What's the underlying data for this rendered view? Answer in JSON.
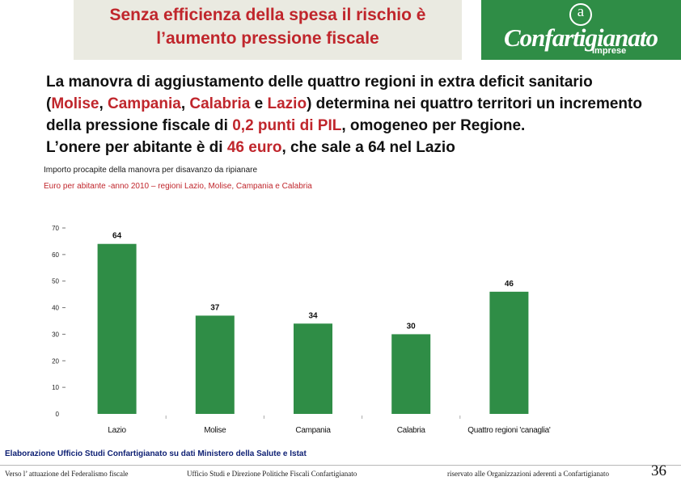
{
  "header": {
    "title_line1": "Senza efficienza della spesa il rischio è",
    "title_line2": "l’aumento pressione fiscale",
    "logo_name": "Confartigianato",
    "logo_sub": "Imprese",
    "logo_symbol": "a"
  },
  "body": {
    "p1_a": "La manovra di aggiustamento delle quattro regioni in extra deficit sanitario (",
    "p1_molise": "Molise",
    "p1_comma1": ", ",
    "p1_campania": "Campania",
    "p1_comma2": ", ",
    "p1_calabria": "Calabria",
    "p1_e": " e ",
    "p1_lazio": "Lazio",
    "p1_b": ") determina nei quattro territori un incremento della pressione fiscale di ",
    "p1_val": "0,2 punti di PIL",
    "p1_c": ", omogeneo per Regione.",
    "p2_a": "L’onere per abitante è di ",
    "p2_val": "46 euro",
    "p2_b": ", che sale a 64 nel Lazio"
  },
  "chart_data": {
    "type": "bar",
    "title": "Importo procapite della manovra per disavanzo da ripianare",
    "subtitle": "Euro per abitante -anno 2010 – regioni Lazio, Molise, Campania e Calabria",
    "categories": [
      "Lazio",
      "Molise",
      "Campania",
      "Calabria",
      "Quattro regioni 'canaglia'"
    ],
    "values": [
      64,
      37,
      34,
      30,
      46
    ],
    "value_labels": [
      "64",
      "37",
      "34",
      "30",
      "46"
    ],
    "yticks": [
      "0",
      "10",
      "20",
      "30",
      "40",
      "50",
      "60",
      "70"
    ],
    "ylim": [
      0,
      70
    ],
    "bar_color": "#2f8d46",
    "grid": false
  },
  "source": "Elaborazione Ufficio Studi Confartigianato su dati Ministero della Salute e Istat",
  "footer": {
    "left": "Verso l’ attuazione del Federalismo fiscale",
    "center": "Ufficio Studi e Direzione Politiche Fiscali Confartigianato",
    "right": "riservato alle Organizzazioni aderenti a Confartigianato",
    "page": "36"
  }
}
